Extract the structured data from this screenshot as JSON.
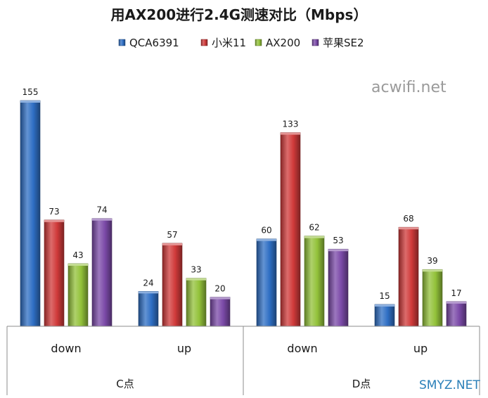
{
  "chart_data": {
    "type": "bar",
    "title": "用AX200进行2.4G测速对比（Mbps）",
    "groups": [
      {
        "label": "C点",
        "categories": [
          "down",
          "up"
        ]
      },
      {
        "label": "D点",
        "categories": [
          "down",
          "up"
        ]
      }
    ],
    "categories": [
      "down",
      "up",
      "down",
      "up"
    ],
    "series": [
      {
        "name": "QCA6391",
        "color": "#2f6fc4",
        "values": [
          155,
          24,
          60,
          15
        ]
      },
      {
        "name": "小米11",
        "color": "#d03a3a",
        "values": [
          73,
          57,
          133,
          68
        ]
      },
      {
        "name": "AX200",
        "color": "#93c23a",
        "values": [
          43,
          33,
          62,
          39
        ]
      },
      {
        "name": "苹果SE2",
        "color": "#7b4aa8",
        "values": [
          74,
          20,
          53,
          17
        ]
      }
    ],
    "ylim": [
      0,
      155
    ],
    "legend_position": "top-center",
    "grid": false
  },
  "watermarks": [
    "acwifi.net",
    "SMYZ.NET"
  ]
}
